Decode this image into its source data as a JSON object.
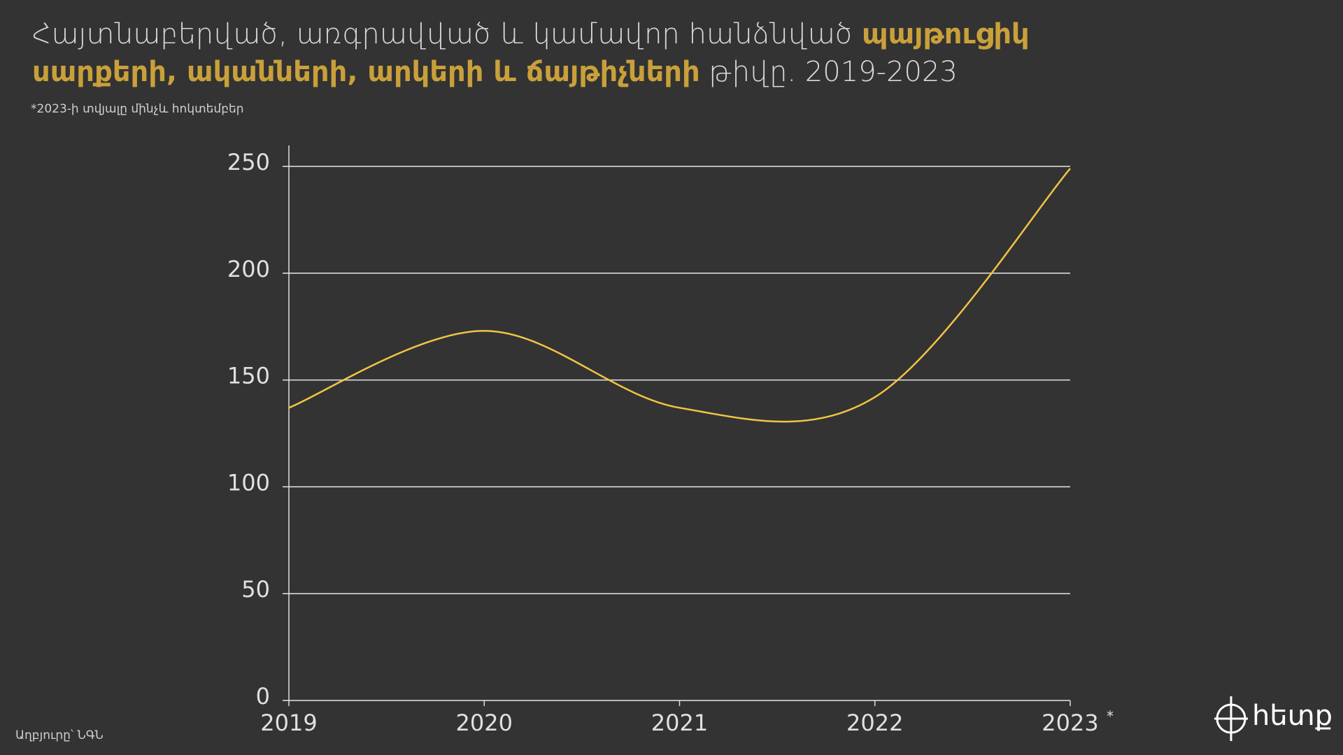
{
  "chart_data": {
    "type": "line",
    "title_parts": [
      {
        "text": "Հայտնաբերված, առգրավված և կամավոր հանձնված ",
        "highlight": false
      },
      {
        "text": "պայթուցիկ սարքերի, ականների, արկերի և ճայթիչների",
        "highlight": true
      },
      {
        "text": " թիվը. 2019-2023",
        "highlight": false
      }
    ],
    "subtitle": "*2023-ի տվյալը մինչև հոկտեմբեր",
    "source": "Աղբյուրը՝ ՆԳՆ",
    "logo": "հետք",
    "categories": [
      "2019",
      "2020",
      "2021",
      "2022",
      "2023"
    ],
    "category_note": {
      "index": 4,
      "marker": "*"
    },
    "series": [
      {
        "color": "#f2c443",
        "values": [
          137,
          173,
          137,
          142,
          249
        ]
      }
    ],
    "highlight_color": "#c9a03a",
    "ylim": [
      0,
      250
    ],
    "yticks": [
      0,
      50,
      100,
      150,
      200,
      250
    ],
    "grid": true
  }
}
